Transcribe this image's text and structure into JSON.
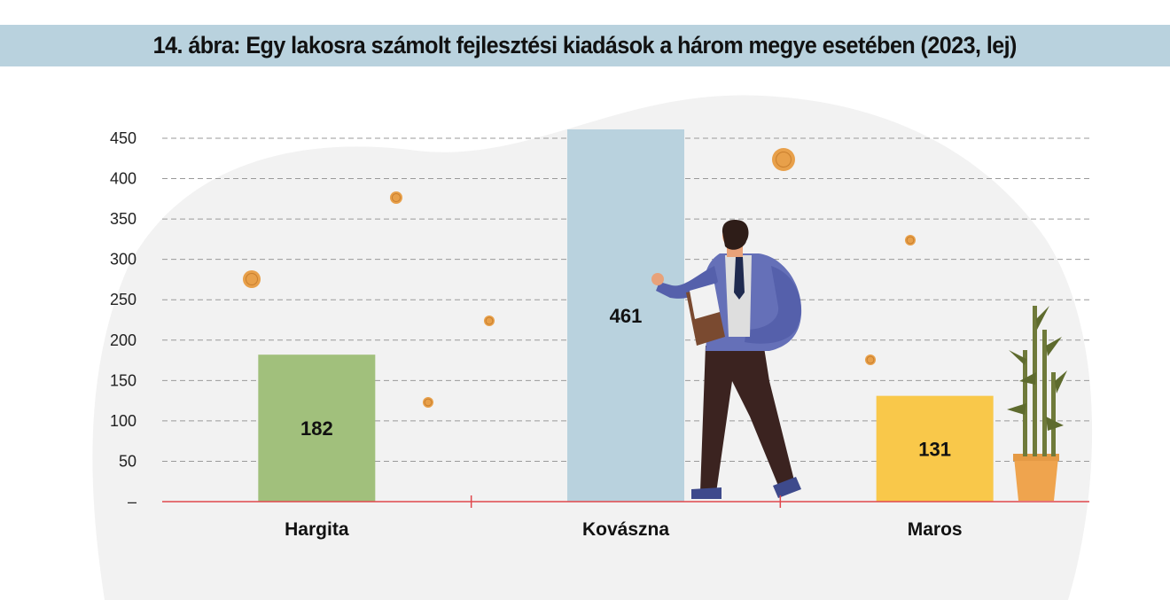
{
  "title": "14. ábra: Egy lakosra számolt fejlesztési kiadások a három megye esetében (2023, lej)",
  "colors": {
    "title_band": "#b9d2de",
    "background_blob": "#f2f2f2",
    "grid": "#9a9a9a",
    "baseline": "#e0474c",
    "coin": "#e8a04a"
  },
  "chart_data": {
    "type": "bar",
    "title": "14. ábra: Egy lakosra számolt fejlesztési kiadások a három megye esetében (2023, lej)",
    "xlabel": "",
    "ylabel": "",
    "categories": [
      "Hargita",
      "Kovászna",
      "Maros"
    ],
    "values": [
      182,
      461,
      131
    ],
    "value_labels": [
      "182",
      "461",
      "131"
    ],
    "bar_colors": [
      "#a1c07c",
      "#b9d2de",
      "#f9c84a"
    ],
    "y_ticks": [
      0,
      50,
      100,
      150,
      200,
      250,
      300,
      350,
      400,
      450
    ],
    "y_tick_labels": [
      "–",
      "50",
      "100",
      "150",
      "200",
      "250",
      "300",
      "350",
      "400",
      "450"
    ],
    "ylim": [
      0,
      461
    ],
    "grid": true,
    "legend": "none"
  },
  "decorations": {
    "illustration": "businessman-reading-document-icon",
    "plant": "bamboo-plant-icon",
    "coins": "coin-icon"
  }
}
